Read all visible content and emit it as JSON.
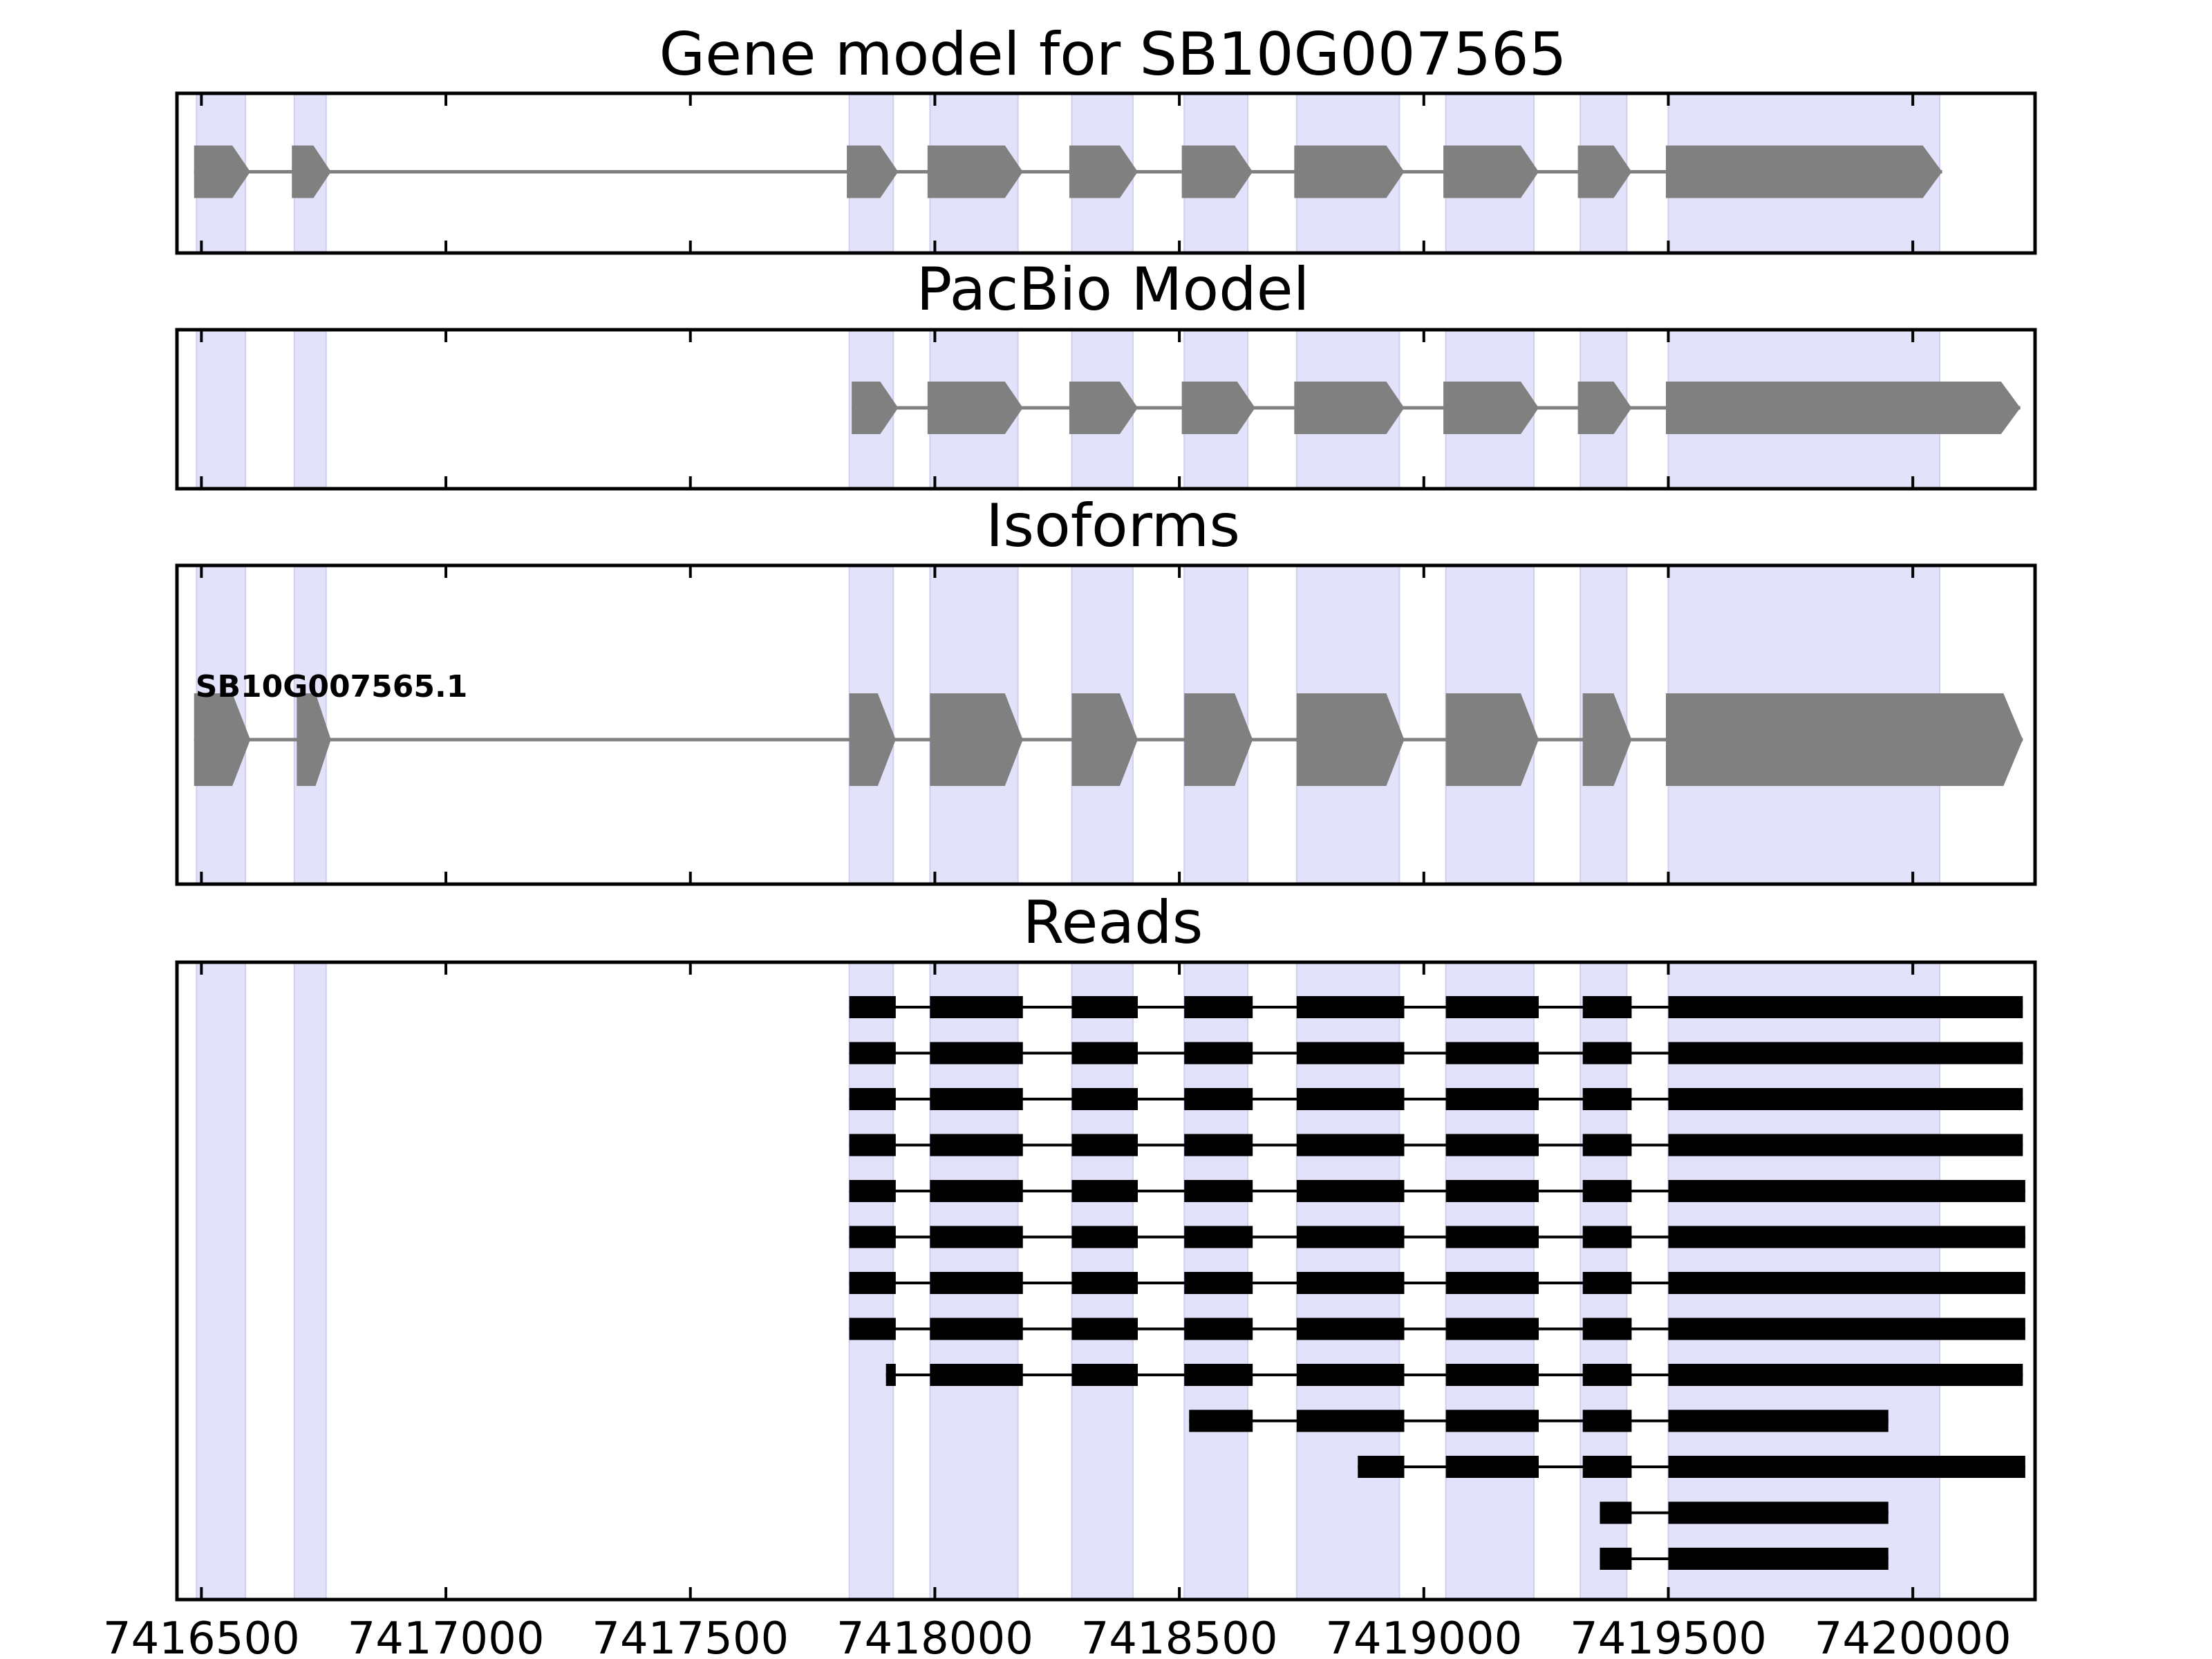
{
  "chart_data": {
    "type": "gene-structure",
    "x_domain": [
      7416450,
      7420250
    ],
    "x_ticks": [
      7416500,
      7417000,
      7417500,
      7418000,
      7418500,
      7419000,
      7419500,
      7420000
    ],
    "x_tick_labels": [
      "7416500",
      "7417000",
      "7417500",
      "7418000",
      "7418500",
      "7419000",
      "7419500",
      "7420000"
    ],
    "grid": false,
    "highlight_color": "#e2e2fa",
    "model_color": "#808080",
    "read_color": "#000000",
    "exon_regions": [
      [
        7416490,
        7416590
      ],
      [
        7416690,
        7416755
      ],
      [
        7417825,
        7417915
      ],
      [
        7417990,
        7418170
      ],
      [
        7418280,
        7418405
      ],
      [
        7418510,
        7418640
      ],
      [
        7418740,
        7418950
      ],
      [
        7419045,
        7419225
      ],
      [
        7419320,
        7419415
      ],
      [
        7419500,
        7420055
      ]
    ],
    "panels": [
      {
        "title": "Gene model for SB10G007565",
        "strand": "+",
        "exons": [
          [
            7416485,
            7416600
          ],
          [
            7416685,
            7416765
          ],
          [
            7417820,
            7417925
          ],
          [
            7417985,
            7418180
          ],
          [
            7418275,
            7418415
          ],
          [
            7418505,
            7418650
          ],
          [
            7418735,
            7418960
          ],
          [
            7419040,
            7419235
          ],
          [
            7419315,
            7419425
          ],
          [
            7419495,
            7420060
          ]
        ]
      },
      {
        "title": "PacBio Model",
        "strand": "+",
        "exons": [
          [
            7417830,
            7417925
          ],
          [
            7417985,
            7418180
          ],
          [
            7418275,
            7418415
          ],
          [
            7418505,
            7418655
          ],
          [
            7418735,
            7418960
          ],
          [
            7419040,
            7419235
          ],
          [
            7419315,
            7419425
          ],
          [
            7419495,
            7420220
          ]
        ]
      },
      {
        "title": "Isoforms",
        "strand": "+",
        "label": "SB10G007565.1",
        "exons": [
          [
            7416485,
            7416600
          ],
          [
            7416695,
            7416765
          ],
          [
            7417825,
            7417920
          ],
          [
            7417990,
            7418180
          ],
          [
            7418280,
            7418415
          ],
          [
            7418510,
            7418650
          ],
          [
            7418740,
            7418960
          ],
          [
            7419045,
            7419235
          ],
          [
            7419325,
            7419425
          ],
          [
            7419495,
            7420225
          ]
        ]
      },
      {
        "title": "Reads",
        "strand": ".",
        "reads": [
          [
            [
              7417825,
              7417920
            ],
            [
              7417990,
              7418180
            ],
            [
              7418280,
              7418415
            ],
            [
              7418510,
              7418650
            ],
            [
              7418740,
              7418960
            ],
            [
              7419045,
              7419235
            ],
            [
              7419325,
              7419425
            ],
            [
              7419500,
              7420225
            ]
          ],
          [
            [
              7417825,
              7417920
            ],
            [
              7417990,
              7418180
            ],
            [
              7418280,
              7418415
            ],
            [
              7418510,
              7418650
            ],
            [
              7418740,
              7418960
            ],
            [
              7419045,
              7419235
            ],
            [
              7419325,
              7419425
            ],
            [
              7419500,
              7420225
            ]
          ],
          [
            [
              7417825,
              7417920
            ],
            [
              7417990,
              7418180
            ],
            [
              7418280,
              7418415
            ],
            [
              7418510,
              7418650
            ],
            [
              7418740,
              7418960
            ],
            [
              7419045,
              7419235
            ],
            [
              7419325,
              7419425
            ],
            [
              7419500,
              7420225
            ]
          ],
          [
            [
              7417825,
              7417920
            ],
            [
              7417990,
              7418180
            ],
            [
              7418280,
              7418415
            ],
            [
              7418510,
              7418650
            ],
            [
              7418740,
              7418960
            ],
            [
              7419045,
              7419235
            ],
            [
              7419325,
              7419425
            ],
            [
              7419500,
              7420225
            ]
          ],
          [
            [
              7417825,
              7417920
            ],
            [
              7417990,
              7418180
            ],
            [
              7418280,
              7418415
            ],
            [
              7418510,
              7418650
            ],
            [
              7418740,
              7418960
            ],
            [
              7419045,
              7419235
            ],
            [
              7419325,
              7419425
            ],
            [
              7419500,
              7420230
            ]
          ],
          [
            [
              7417825,
              7417920
            ],
            [
              7417990,
              7418180
            ],
            [
              7418280,
              7418415
            ],
            [
              7418510,
              7418650
            ],
            [
              7418740,
              7418960
            ],
            [
              7419045,
              7419235
            ],
            [
              7419325,
              7419425
            ],
            [
              7419500,
              7420230
            ]
          ],
          [
            [
              7417825,
              7417920
            ],
            [
              7417990,
              7418180
            ],
            [
              7418280,
              7418415
            ],
            [
              7418510,
              7418650
            ],
            [
              7418740,
              7418960
            ],
            [
              7419045,
              7419235
            ],
            [
              7419325,
              7419425
            ],
            [
              7419500,
              7420230
            ]
          ],
          [
            [
              7417825,
              7417920
            ],
            [
              7417990,
              7418180
            ],
            [
              7418280,
              7418415
            ],
            [
              7418510,
              7418650
            ],
            [
              7418740,
              7418960
            ],
            [
              7419045,
              7419235
            ],
            [
              7419325,
              7419425
            ],
            [
              7419500,
              7420230
            ]
          ],
          [
            [
              7417900,
              7417920
            ],
            [
              7417990,
              7418180
            ],
            [
              7418280,
              7418415
            ],
            [
              7418510,
              7418650
            ],
            [
              7418740,
              7418960
            ],
            [
              7419045,
              7419235
            ],
            [
              7419325,
              7419425
            ],
            [
              7419500,
              7420225
            ]
          ],
          [
            [
              7418520,
              7418650
            ],
            [
              7418740,
              7418960
            ],
            [
              7419045,
              7419235
            ],
            [
              7419325,
              7419425
            ],
            [
              7419500,
              7419950
            ]
          ],
          [
            [
              7418865,
              7418960
            ],
            [
              7419045,
              7419235
            ],
            [
              7419325,
              7419425
            ],
            [
              7419500,
              7420230
            ]
          ],
          [
            [
              7419360,
              7419425
            ],
            [
              7419500,
              7419950
            ]
          ],
          [
            [
              7419360,
              7419425
            ],
            [
              7419500,
              7419950
            ]
          ]
        ]
      }
    ]
  }
}
